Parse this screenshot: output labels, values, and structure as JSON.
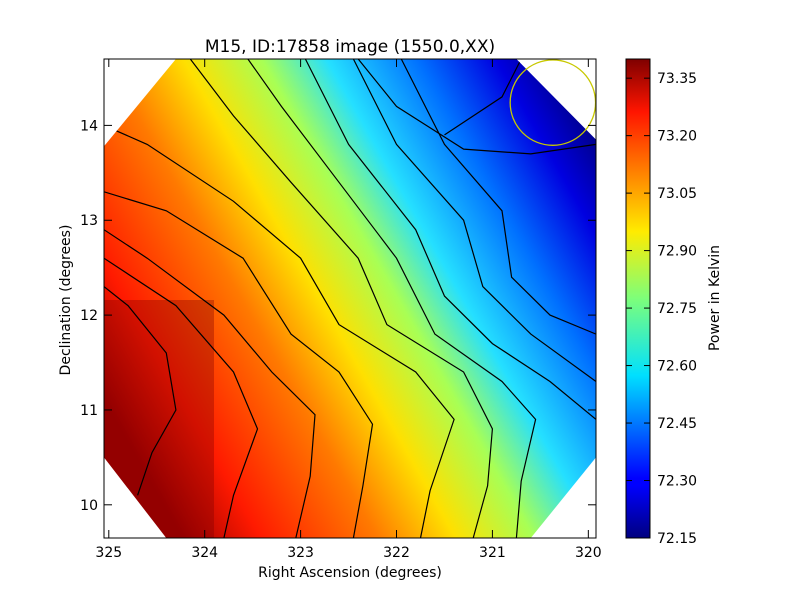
{
  "chart_data": {
    "type": "heatmap",
    "title": "M15, ID:17858 image (1550.0,XX)",
    "xlabel": "Right Ascension (degrees)",
    "ylabel": "Declination (degrees)",
    "xlim": [
      325.05,
      319.92
    ],
    "ylim": [
      9.65,
      14.7
    ],
    "x_ticks": [
      325,
      324,
      323,
      322,
      321,
      320
    ],
    "y_ticks": [
      10,
      11,
      12,
      13,
      14
    ],
    "x_tick_labels": [
      "325",
      "324",
      "323",
      "322",
      "321",
      "320"
    ],
    "y_tick_labels": [
      "10",
      "11",
      "12",
      "13",
      "14"
    ],
    "colorbar": {
      "label": "Power in Kelvin",
      "range": [
        72.15,
        73.4
      ],
      "ticks": [
        72.15,
        72.3,
        72.45,
        72.6,
        72.75,
        72.9,
        73.05,
        73.2,
        73.35
      ],
      "tick_labels": [
        "72.15",
        "72.30",
        "72.45",
        "72.60",
        "72.75",
        "72.90",
        "73.05",
        "73.20",
        "73.35"
      ],
      "colormap": "jet"
    },
    "field": {
      "description_of_gradient": "maximum at lower-left, minimum at upper-right",
      "max_value": 73.4,
      "min_value": 72.15
    },
    "contour_levels": [
      72.25,
      72.35,
      72.45,
      72.55,
      72.65,
      72.75,
      72.85,
      72.95,
      73.05,
      73.15,
      73.25,
      73.35
    ],
    "beam_circle": {
      "center_ra": 320.37,
      "center_dec": 14.24,
      "radius_dec": 0.45,
      "color": "#c8c800"
    },
    "grid": false,
    "legend": "none"
  }
}
